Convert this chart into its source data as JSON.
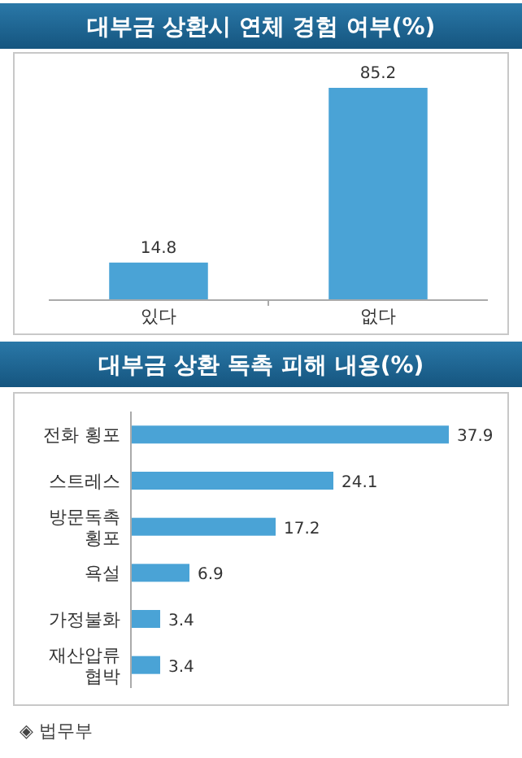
{
  "chart_data": [
    {
      "type": "bar",
      "title": "대부금 상환시 연체 경험 여부(%)",
      "categories": [
        "있다",
        "없다"
      ],
      "values": [
        14.8,
        85.2
      ],
      "color": "#4aa3d6",
      "data_labels": true
    },
    {
      "type": "bar",
      "orientation": "horizontal",
      "title": "대부금 상환 독촉 피해 내용(%)",
      "categories": [
        "전화 횡포",
        "스트레스",
        "방문독촉 횡포",
        "욕설",
        "가정불화",
        "재산압류 협박"
      ],
      "values": [
        37.9,
        24.1,
        17.2,
        6.9,
        3.4,
        3.4
      ],
      "color": "#4aa3d6",
      "data_labels": true,
      "annotations": [
        "◈ 법무부"
      ]
    }
  ]
}
